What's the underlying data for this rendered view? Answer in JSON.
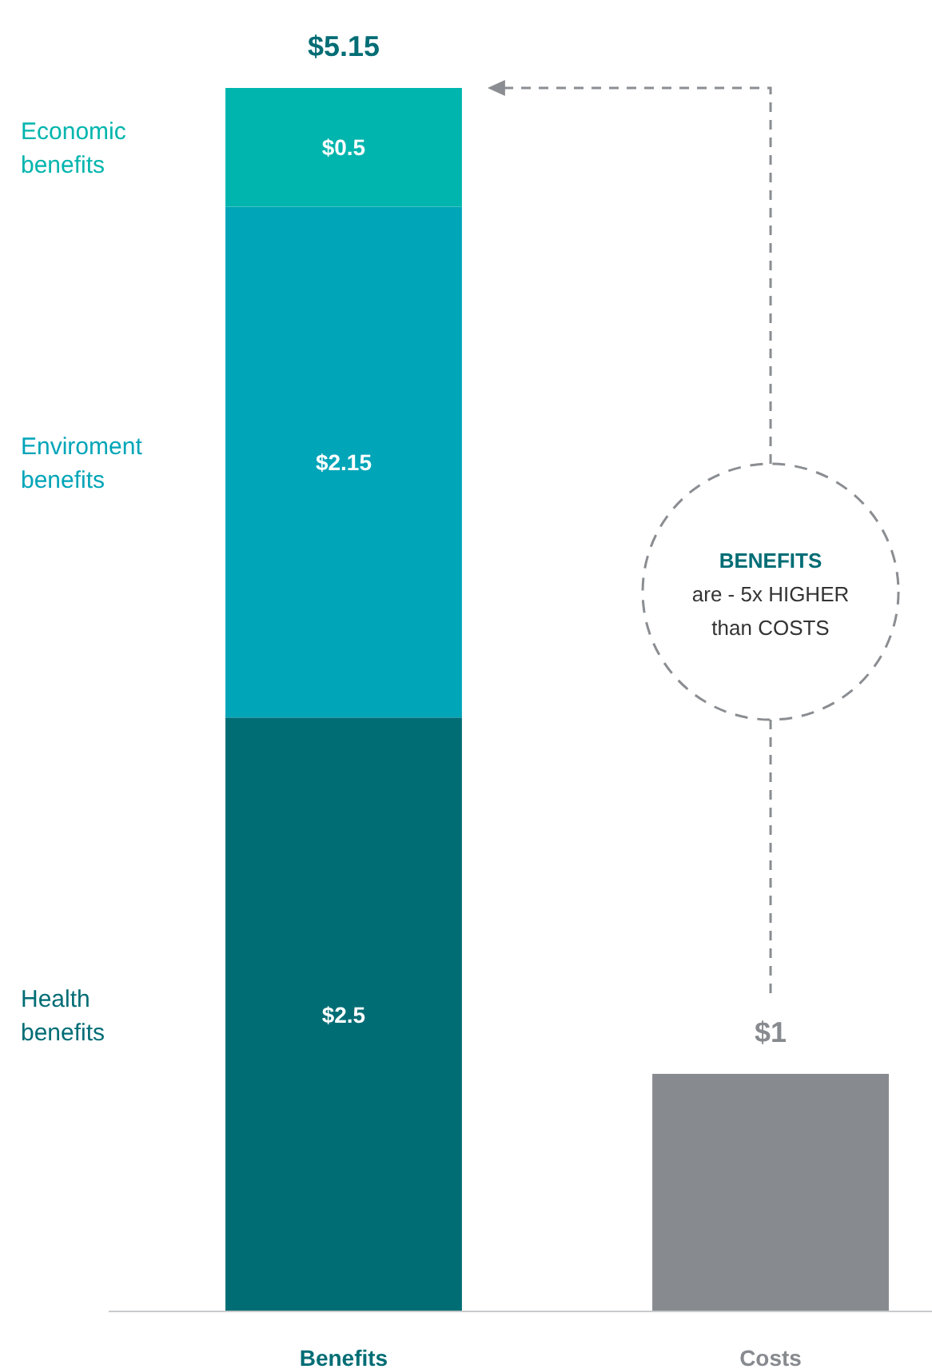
{
  "chart_data": {
    "type": "bar",
    "stacked": true,
    "categories": [
      "Benefits",
      "Costs"
    ],
    "series": [
      {
        "name": "Health benefits",
        "color": "#006d75",
        "values": [
          2.5,
          null
        ],
        "value_labels": [
          "$2.5",
          null
        ]
      },
      {
        "name": "Enviroment benefits",
        "color": "#00a5b8",
        "values": [
          2.15,
          null
        ],
        "value_labels": [
          "$2.15",
          null
        ]
      },
      {
        "name": "Economic benefits",
        "color": "#00b5ad",
        "values": [
          0.5,
          null
        ],
        "value_labels": [
          "$0.5",
          null
        ]
      },
      {
        "color": "#878a8e",
        "values": [
          null,
          1
        ]
      }
    ],
    "totals": [
      "$5.15",
      "$1"
    ],
    "annotations": [
      "BENEFITS are - 5x HIGHER than COSTS"
    ]
  }
}
